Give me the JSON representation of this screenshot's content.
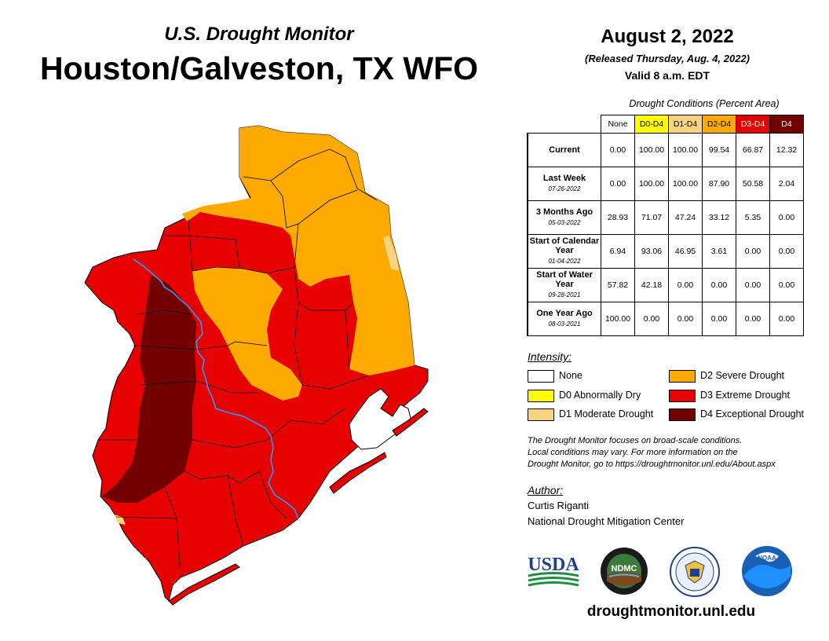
{
  "header": {
    "subtitle": "U.S. Drought Monitor",
    "title": "Houston/Galveston, TX WFO",
    "date": "August 2, 2022",
    "released": "(Released Thursday, Aug. 4, 2022)",
    "valid": "Valid 8 a.m. EDT"
  },
  "table": {
    "caption": "Drought Conditions (Percent Area)",
    "columns": [
      {
        "label": "None",
        "bg": "#ffffff",
        "fg": "#000000"
      },
      {
        "label": "D0-D4",
        "bg": "#ffff00",
        "fg": "#000000"
      },
      {
        "label": "D1-D4",
        "bg": "#fcd37f",
        "fg": "#000000"
      },
      {
        "label": "D2-D4",
        "bg": "#ffaa00",
        "fg": "#000000"
      },
      {
        "label": "D3-D4",
        "bg": "#e60000",
        "fg": "#ffffff"
      },
      {
        "label": "D4",
        "bg": "#730000",
        "fg": "#ffffff"
      }
    ],
    "rows": [
      {
        "label": "Current",
        "date": "",
        "values": [
          "0.00",
          "100.00",
          "100.00",
          "99.54",
          "66.87",
          "12.32"
        ]
      },
      {
        "label": "Last Week",
        "date": "07-26-2022",
        "values": [
          "0.00",
          "100.00",
          "100.00",
          "87.90",
          "50.58",
          "2.04"
        ]
      },
      {
        "label": "3 Months Ago",
        "date": "05-03-2022",
        "values": [
          "28.93",
          "71.07",
          "47.24",
          "33.12",
          "5.35",
          "0.00"
        ]
      },
      {
        "label": "Start of Calendar Year",
        "date": "01-04-2022",
        "values": [
          "6.94",
          "93.06",
          "46.95",
          "3.61",
          "0.00",
          "0.00"
        ]
      },
      {
        "label": "Start of Water Year",
        "date": "09-28-2021",
        "values": [
          "57.82",
          "42.18",
          "0.00",
          "0.00",
          "0.00",
          "0.00"
        ]
      },
      {
        "label": "One Year Ago",
        "date": "08-03-2021",
        "values": [
          "100.00",
          "0.00",
          "0.00",
          "0.00",
          "0.00",
          "0.00"
        ]
      }
    ]
  },
  "legend": {
    "title": "Intensity:",
    "items": [
      {
        "label": "None",
        "color": "#ffffff"
      },
      {
        "label": "D0 Abnormally Dry",
        "color": "#ffff00"
      },
      {
        "label": "D1 Moderate Drought",
        "color": "#fcd37f"
      },
      {
        "label": "D2 Severe Drought",
        "color": "#ffaa00"
      },
      {
        "label": "D3 Extreme Drought",
        "color": "#e60000"
      },
      {
        "label": "D4 Exceptional Drought",
        "color": "#730000"
      }
    ]
  },
  "note": {
    "line1": "The Drought Monitor focuses on broad-scale conditions.",
    "line2": "Local conditions may vary. For more information on the",
    "line3": "Drought Monitor, go to https://droughtmonitor.unl.edu/About.aspx"
  },
  "author": {
    "label": "Author:",
    "name": "Curtis Riganti",
    "org": "National Drought Mitigation Center"
  },
  "logos": {
    "usda": "USDA",
    "ndmc": "NDMC",
    "noaa": "NOAA"
  },
  "website": "droughtmonitor.unl.edu",
  "map_colors": {
    "d1": "#fcd37f",
    "d2": "#ffaa00",
    "d3": "#e60000",
    "d4": "#730000",
    "river": "#3a8de0"
  }
}
